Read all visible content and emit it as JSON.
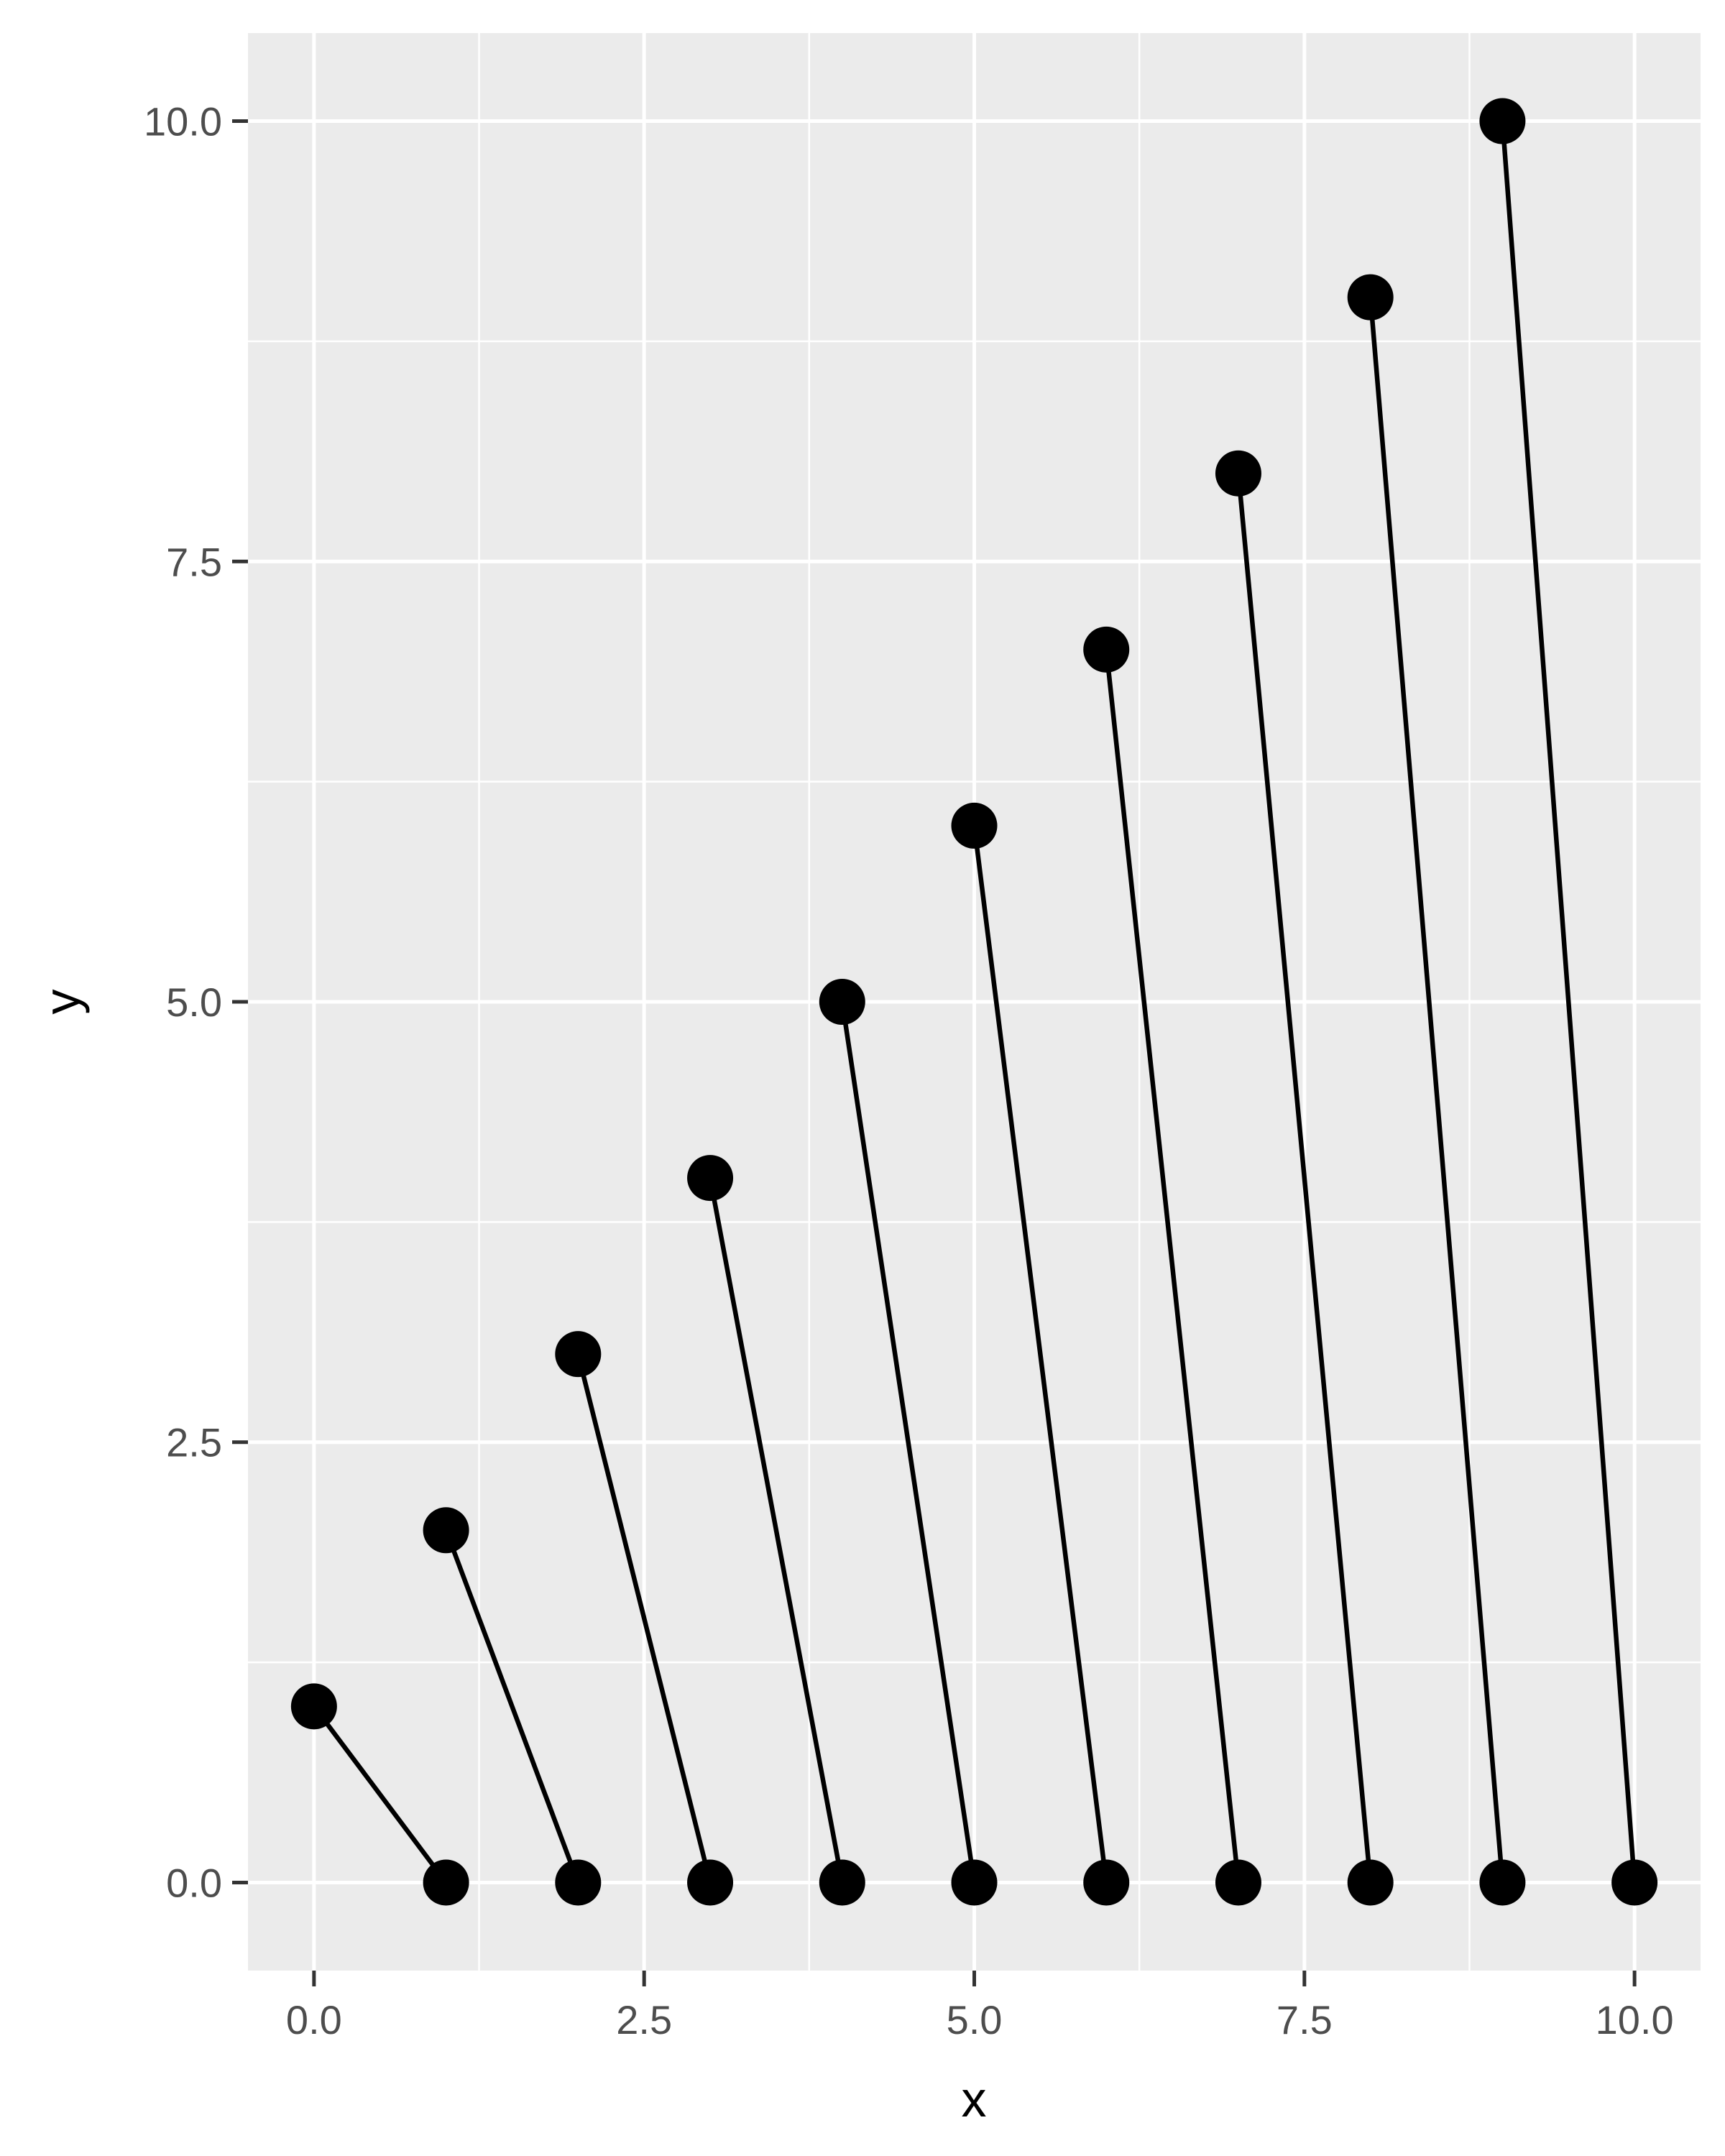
{
  "chart_data": {
    "type": "scatter",
    "xlabel": "x",
    "ylabel": "y",
    "xlim": [
      -0.5,
      10.5
    ],
    "ylim": [
      -0.5,
      10.5
    ],
    "x_ticks": [
      0.0,
      2.5,
      5.0,
      7.5,
      10.0
    ],
    "x_tick_labels": [
      "0.0",
      "2.5",
      "5.0",
      "7.5",
      "10.0"
    ],
    "y_ticks": [
      0.0,
      2.5,
      5.0,
      7.5,
      10.0
    ],
    "y_tick_labels": [
      "0.0",
      "2.5",
      "5.0",
      "7.5",
      "10.0"
    ],
    "grid": true,
    "points": [
      {
        "x": 0,
        "y": 1
      },
      {
        "x": 1,
        "y": 0
      },
      {
        "x": 1,
        "y": 2
      },
      {
        "x": 2,
        "y": 0
      },
      {
        "x": 2,
        "y": 3
      },
      {
        "x": 3,
        "y": 0
      },
      {
        "x": 3,
        "y": 4
      },
      {
        "x": 4,
        "y": 0
      },
      {
        "x": 4,
        "y": 5
      },
      {
        "x": 5,
        "y": 0
      },
      {
        "x": 5,
        "y": 6
      },
      {
        "x": 6,
        "y": 0
      },
      {
        "x": 6,
        "y": 7
      },
      {
        "x": 7,
        "y": 0
      },
      {
        "x": 7,
        "y": 8
      },
      {
        "x": 8,
        "y": 0
      },
      {
        "x": 8,
        "y": 9
      },
      {
        "x": 9,
        "y": 0
      },
      {
        "x": 9,
        "y": 10
      },
      {
        "x": 10,
        "y": 0
      }
    ],
    "segments": [
      {
        "x1": 0,
        "y1": 1,
        "x2": 1,
        "y2": 0
      },
      {
        "x1": 1,
        "y1": 2,
        "x2": 2,
        "y2": 0
      },
      {
        "x1": 2,
        "y1": 3,
        "x2": 3,
        "y2": 0
      },
      {
        "x1": 3,
        "y1": 4,
        "x2": 4,
        "y2": 0
      },
      {
        "x1": 4,
        "y1": 5,
        "x2": 5,
        "y2": 0
      },
      {
        "x1": 5,
        "y1": 6,
        "x2": 6,
        "y2": 0
      },
      {
        "x1": 6,
        "y1": 7,
        "x2": 7,
        "y2": 0
      },
      {
        "x1": 7,
        "y1": 8,
        "x2": 8,
        "y2": 0
      },
      {
        "x1": 8,
        "y1": 9,
        "x2": 9,
        "y2": 0
      },
      {
        "x1": 9,
        "y1": 10,
        "x2": 10,
        "y2": 0
      }
    ],
    "colors": {
      "panel_background": "#ebebeb",
      "grid_major": "#ffffff",
      "grid_minor": "#ffffff",
      "marks": "#000000",
      "tick_text": "#4d4d4d",
      "axis_title": "#000000"
    }
  }
}
